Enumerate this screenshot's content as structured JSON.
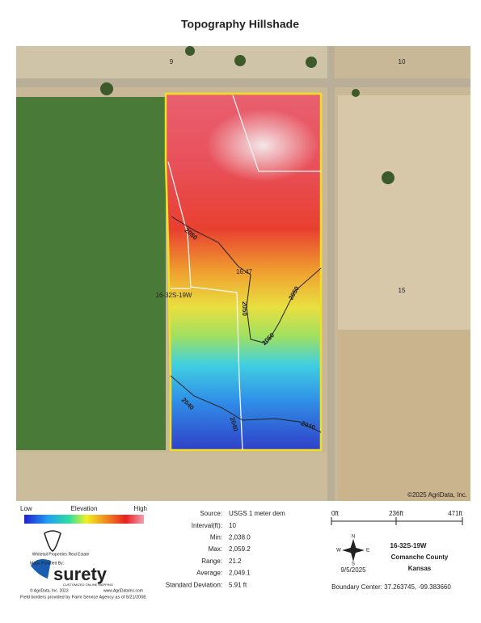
{
  "header": {
    "title": "Topography Hillshade"
  },
  "map": {
    "section_labels": [
      "9",
      "10",
      "15"
    ],
    "field_label": "16-32S-19W",
    "acres": "16.47",
    "contours": [
      "2050",
      "2050",
      "2050",
      "2050",
      "2040",
      "2040",
      "2040"
    ],
    "copyright": "©2025 AgriData, Inc."
  },
  "legend": {
    "low": "Low",
    "title": "Elevation",
    "high": "High"
  },
  "stats": [
    {
      "label": "Source:",
      "value": "USGS 1 meter dem"
    },
    {
      "label": "Interval(ft):",
      "value": "10"
    },
    {
      "label": "Min:",
      "value": "2,038.0"
    },
    {
      "label": "Max:",
      "value": "2,059.2"
    },
    {
      "label": "Range:",
      "value": "21.2"
    },
    {
      "label": "Average:",
      "value": "2,049.1"
    },
    {
      "label": "Standard Deviation:",
      "value": "5.91 ft"
    }
  ],
  "scale": [
    "0ft",
    "236ft",
    "471ft"
  ],
  "compass": {
    "n": "N",
    "s": "S",
    "w": "W",
    "e": "E"
  },
  "info": {
    "field": "16-32S-19W",
    "county": "Comanche County",
    "state": "Kansas",
    "date": "9/5/2025",
    "center": "Boundary Center: 37.263745, -99.383660"
  },
  "branding": {
    "company": "Whitetail Properties Real Estate",
    "provided": "Maps Provided By:",
    "brand": "surety",
    "tagline": "CUSTOMIZED ONLINE MAPPING",
    "copyright": "© AgriData, Inc. 2023",
    "url": "www.AgriDataInc.com",
    "footnote": "Field borders provided by Farm Service Agency as of 5/21/2008."
  }
}
